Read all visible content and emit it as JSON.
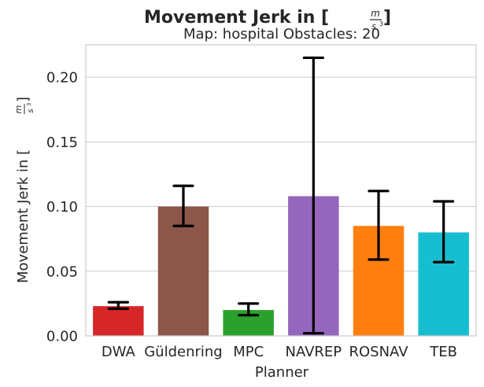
{
  "chart_data": {
    "type": "bar",
    "title": "Movement Jerk in [m/s³]",
    "title_prefix": "Movement Jerk in [",
    "title_suffix": "]",
    "unit_num": "m",
    "unit_den": "s",
    "unit_exp": "3",
    "subtitle": "Map: hospital Obstacles: 20",
    "xlabel": "Planner",
    "ylabel": "Movement Jerk in [m/s³]",
    "ylabel_prefix": "Movement Jerk in [",
    "ylabel_suffix": "]",
    "categories": [
      "DWA",
      "Güldenring",
      "MPC",
      "NAVREP",
      "ROSNAV",
      "TEB"
    ],
    "values": [
      0.023,
      0.1,
      0.02,
      0.108,
      0.085,
      0.08
    ],
    "error_low": [
      0.021,
      0.085,
      0.016,
      0.002,
      0.059,
      0.057
    ],
    "error_high": [
      0.026,
      0.116,
      0.025,
      0.215,
      0.112,
      0.104
    ],
    "colors": [
      "#d62728",
      "#8c564b",
      "#2ca02c",
      "#9467bd",
      "#ff7f0e",
      "#17becf"
    ],
    "ylim": [
      0,
      0.225
    ],
    "yticks": [
      "0.00",
      "0.05",
      "0.10",
      "0.15",
      "0.20"
    ],
    "ytick_values": [
      0,
      0.05,
      0.1,
      0.15,
      0.2
    ],
    "grid": "horizontal",
    "legend": "none"
  }
}
